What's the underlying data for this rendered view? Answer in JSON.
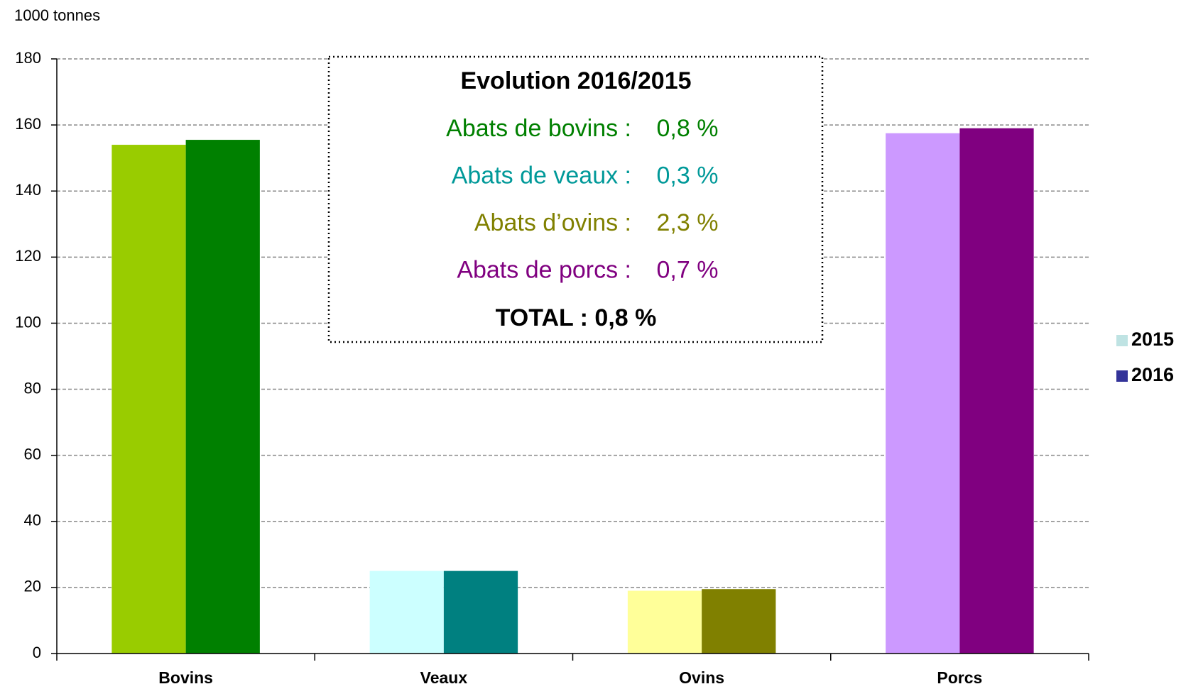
{
  "chart_data": {
    "type": "bar",
    "y_axis_label": "1000 tonnes",
    "categories": [
      "Bovins",
      "Veaux",
      "Ovins",
      "Porcs"
    ],
    "series": [
      {
        "name": "2015",
        "color": "#bfe3e3",
        "colors": [
          "#99cc00",
          "#ccffff",
          "#ffff99",
          "#cc99ff"
        ],
        "values": [
          154,
          25,
          19,
          157.5
        ]
      },
      {
        "name": "2016",
        "color": "#333399",
        "colors": [
          "#008000",
          "#008080",
          "#808000",
          "#800080"
        ],
        "values": [
          155.5,
          25,
          19.5,
          159
        ]
      }
    ],
    "ylim": [
      0,
      180
    ],
    "yticks": [
      0,
      20,
      40,
      60,
      80,
      100,
      120,
      140,
      160,
      180
    ],
    "grid": true,
    "legend": "right",
    "annotation": {
      "title": "Evolution 2016/2015",
      "lines": [
        {
          "label": "Abats de bovins :",
          "value": "0,8 %",
          "color": "#008000"
        },
        {
          "label": "Abats de veaux :",
          "value": "0,3 %",
          "color": "#009999"
        },
        {
          "label": "Abats d’ovins :",
          "value": "2,3 %",
          "color": "#808000"
        },
        {
          "label": "Abats de porcs :",
          "value": "0,7 %",
          "color": "#800080"
        }
      ],
      "total": "TOTAL : 0,8 %"
    }
  }
}
